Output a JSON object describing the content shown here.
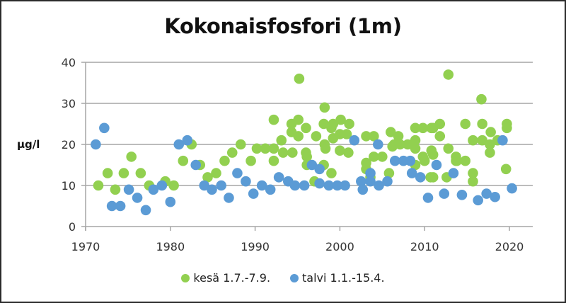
{
  "chart_data": {
    "type": "scatter",
    "title": "Kokonaisfosfori (1m)",
    "xlabel": "",
    "ylabel": "µg/l",
    "xlim": [
      1970,
      2022.7
    ],
    "ylim": [
      0,
      40
    ],
    "x_ticks": [
      1970,
      1980,
      1990,
      2000,
      2010,
      2020
    ],
    "y_ticks": [
      0,
      10,
      20,
      30,
      40
    ],
    "grid": "horizontal",
    "legend_position": "bottom",
    "series": [
      {
        "name": "kesä 1.7.-7.9.",
        "color": "#92D050",
        "points": [
          [
            1971.5,
            10
          ],
          [
            1972.6,
            13
          ],
          [
            1973.5,
            9
          ],
          [
            1974.5,
            13
          ],
          [
            1975.4,
            17
          ],
          [
            1976.5,
            13
          ],
          [
            1977.5,
            10
          ],
          [
            1979.4,
            11
          ],
          [
            1980.4,
            10
          ],
          [
            1981.5,
            16
          ],
          [
            1982.5,
            20
          ],
          [
            1983.5,
            15
          ],
          [
            1984.4,
            12
          ],
          [
            1985.4,
            13
          ],
          [
            1986.4,
            16
          ],
          [
            1987.3,
            18
          ],
          [
            1988.3,
            20
          ],
          [
            1989.5,
            16
          ],
          [
            1990.2,
            19
          ],
          [
            1991.2,
            19
          ],
          [
            1992.2,
            26
          ],
          [
            1992.2,
            19
          ],
          [
            1992.2,
            16
          ],
          [
            1993.1,
            21
          ],
          [
            1993.3,
            18
          ],
          [
            1994.3,
            25
          ],
          [
            1994.3,
            23
          ],
          [
            1994.4,
            18
          ],
          [
            1995.1,
            26
          ],
          [
            1995.1,
            22
          ],
          [
            1995.2,
            36
          ],
          [
            1996.0,
            24
          ],
          [
            1996.0,
            18
          ],
          [
            1996.1,
            17
          ],
          [
            1996.1,
            15
          ],
          [
            1997.0,
            11
          ],
          [
            1997.2,
            22
          ],
          [
            1998.1,
            25
          ],
          [
            1998.2,
            29
          ],
          [
            1998.2,
            20
          ],
          [
            1998.3,
            19
          ],
          [
            1998.1,
            15
          ],
          [
            1999.0,
            24
          ],
          [
            1999.0,
            13
          ],
          [
            1999.2,
            25
          ],
          [
            1999.2,
            21.5
          ],
          [
            2000.0,
            22.5
          ],
          [
            2000.0,
            18.5
          ],
          [
            2000.1,
            26
          ],
          [
            2000.8,
            22.5
          ],
          [
            2001.0,
            18
          ],
          [
            2001.1,
            25
          ],
          [
            2003.1,
            22
          ],
          [
            2003.1,
            15.5
          ],
          [
            2003.1,
            14
          ],
          [
            2003.6,
            12
          ],
          [
            2004.0,
            22
          ],
          [
            2004.0,
            17
          ],
          [
            2005.0,
            17
          ],
          [
            2005.8,
            13
          ],
          [
            2006.0,
            23
          ],
          [
            2006.2,
            19.5
          ],
          [
            2006.4,
            20
          ],
          [
            2006.9,
            22
          ],
          [
            2007.1,
            20
          ],
          [
            2008.0,
            20
          ],
          [
            2008.9,
            24
          ],
          [
            2008.9,
            21
          ],
          [
            2008.9,
            19
          ],
          [
            2008.9,
            15
          ],
          [
            2009.8,
            24
          ],
          [
            2009.8,
            17
          ],
          [
            2010.0,
            16
          ],
          [
            2010.7,
            12
          ],
          [
            2010.8,
            24
          ],
          [
            2010.8,
            18.5
          ],
          [
            2011.0,
            24
          ],
          [
            2011.0,
            17.5
          ],
          [
            2011.0,
            12
          ],
          [
            2011.8,
            25
          ],
          [
            2011.8,
            22
          ],
          [
            2012.6,
            12
          ],
          [
            2012.8,
            37
          ],
          [
            2012.8,
            19
          ],
          [
            2013.7,
            17
          ],
          [
            2013.7,
            16
          ],
          [
            2013.8,
            16
          ],
          [
            2014.8,
            25
          ],
          [
            2014.8,
            16
          ],
          [
            2015.7,
            21
          ],
          [
            2015.7,
            13
          ],
          [
            2015.7,
            11
          ],
          [
            2016.7,
            31
          ],
          [
            2016.8,
            25
          ],
          [
            2016.8,
            21
          ],
          [
            2017.7,
            20
          ],
          [
            2017.7,
            18
          ],
          [
            2017.8,
            23
          ],
          [
            2018.6,
            21
          ],
          [
            2019.6,
            14
          ],
          [
            2019.7,
            25
          ],
          [
            2019.7,
            24
          ]
        ]
      },
      {
        "name": "talvi 1.1.-15.4.",
        "color": "#5B9BD5",
        "points": [
          [
            1971.2,
            20
          ],
          [
            1972.2,
            24
          ],
          [
            1973.1,
            5
          ],
          [
            1974.1,
            5
          ],
          [
            1975.1,
            9
          ],
          [
            1976.1,
            7
          ],
          [
            1977.1,
            4
          ],
          [
            1978.0,
            9
          ],
          [
            1979.0,
            10
          ],
          [
            1980.0,
            6
          ],
          [
            1981.0,
            20
          ],
          [
            1982.0,
            21
          ],
          [
            1983.0,
            15
          ],
          [
            1984.0,
            10
          ],
          [
            1984.9,
            9
          ],
          [
            1986.0,
            10
          ],
          [
            1986.9,
            7
          ],
          [
            1987.9,
            13
          ],
          [
            1988.9,
            11
          ],
          [
            1989.8,
            8
          ],
          [
            1990.8,
            10
          ],
          [
            1991.8,
            9
          ],
          [
            1992.8,
            12
          ],
          [
            1993.9,
            11
          ],
          [
            1994.7,
            10
          ],
          [
            1995.8,
            10
          ],
          [
            1996.7,
            15
          ],
          [
            1997.6,
            14
          ],
          [
            1997.6,
            10.5
          ],
          [
            1998.7,
            10
          ],
          [
            1999.7,
            10
          ],
          [
            2000.6,
            10
          ],
          [
            2001.7,
            21
          ],
          [
            2002.5,
            11
          ],
          [
            2002.7,
            9
          ],
          [
            2003.6,
            13
          ],
          [
            2003.6,
            11
          ],
          [
            2004.5,
            20
          ],
          [
            2004.6,
            10
          ],
          [
            2005.6,
            11
          ],
          [
            2006.5,
            16
          ],
          [
            2007.5,
            16
          ],
          [
            2008.3,
            16
          ],
          [
            2008.5,
            13
          ],
          [
            2009.5,
            12
          ],
          [
            2010.4,
            7
          ],
          [
            2011.4,
            15
          ],
          [
            2012.3,
            8
          ],
          [
            2013.4,
            13
          ],
          [
            2014.4,
            7.7
          ],
          [
            2016.3,
            6.4
          ],
          [
            2017.3,
            8
          ],
          [
            2018.3,
            7.2
          ],
          [
            2019.2,
            21
          ],
          [
            2020.3,
            9.3
          ]
        ]
      }
    ]
  }
}
